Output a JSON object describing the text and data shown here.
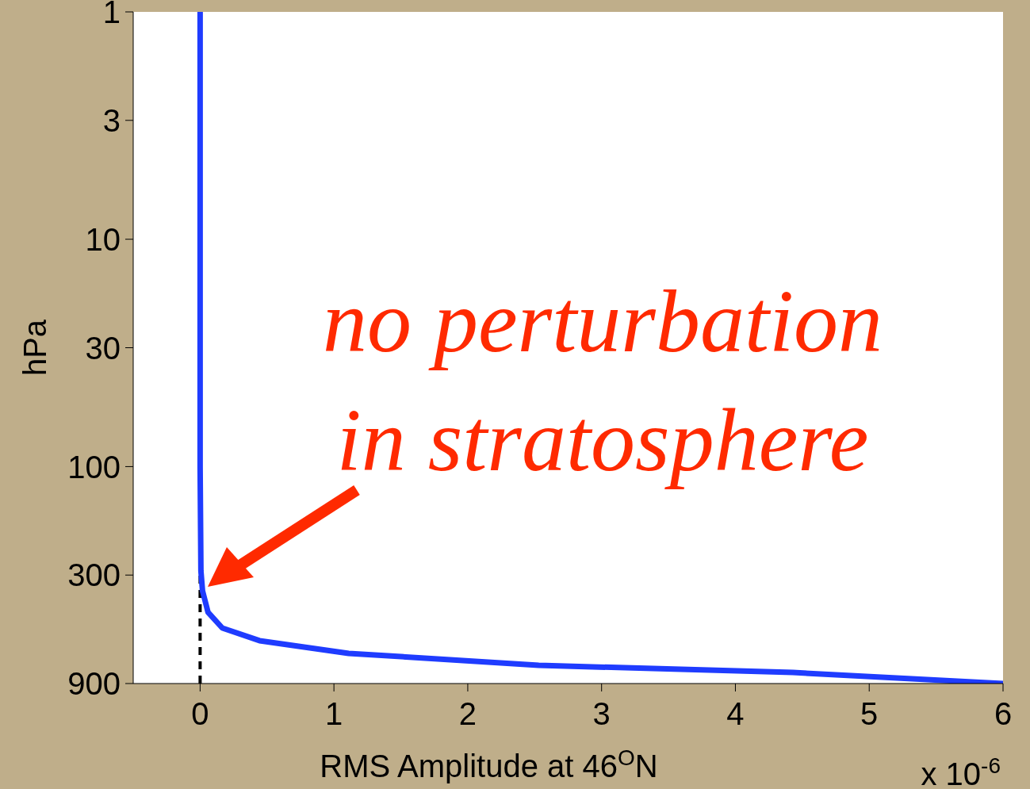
{
  "chart_data": {
    "type": "line",
    "xlabel": "RMS Amplitude at 46$^{O}$N",
    "ylabel": "hPa",
    "x": [
      0,
      0,
      0.006,
      0.018,
      0.059,
      0.166,
      0.444,
      1.11,
      2.53,
      4.43,
      6
    ],
    "series": [
      {
        "color": "#1f3cff",
        "values": [
          1,
          100,
          288,
          352,
          437,
          513,
          583,
          663,
          748,
          805,
          900
        ]
      }
    ],
    "xlim": [
      -0.5,
      6
    ],
    "xticks": [
      0,
      1,
      2,
      3,
      4,
      5,
      6
    ],
    "ylim": [
      900,
      1
    ],
    "yticks": [
      1,
      3,
      10,
      30,
      100,
      300,
      900
    ],
    "log": "y",
    "marker": "none",
    "line_style": "solid",
    "ref_lines": [
      {
        "axis": "x",
        "value": 0,
        "color": "#000000",
        "line_style": "dashed"
      }
    ],
    "annotations": [
      "no perturbation in stratosphere",
      "x 10$^{-6}$"
    ]
  }
}
